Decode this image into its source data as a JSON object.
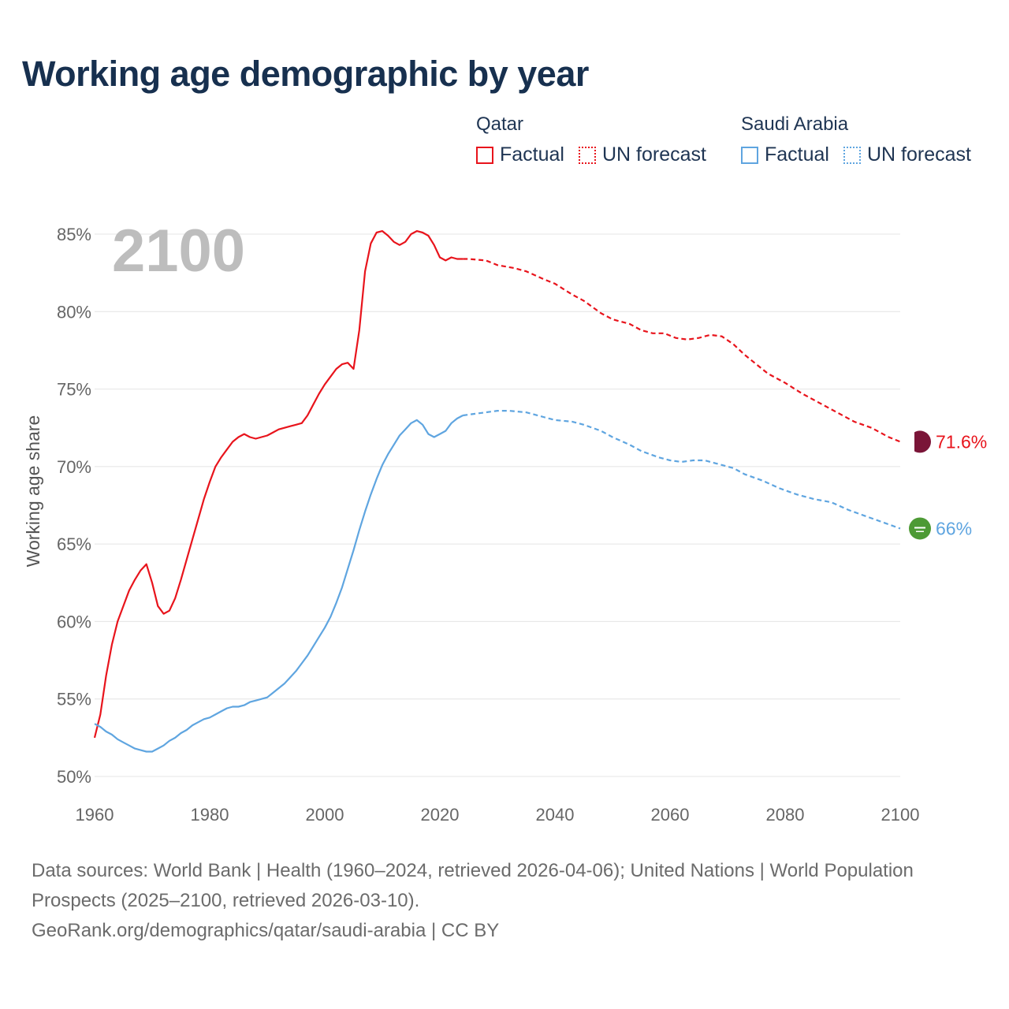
{
  "title": "Working age demographic by year",
  "current_year_label": "2100",
  "legend": {
    "groups": [
      {
        "country": "Qatar",
        "color": "#e8141c",
        "factual_label": "Factual",
        "forecast_label": "UN forecast"
      },
      {
        "country": "Saudi Arabia",
        "color": "#5fa5e0",
        "factual_label": "Factual",
        "forecast_label": "UN forecast"
      }
    ]
  },
  "source": {
    "line1": "Data sources: World Bank | Health (1960–2024, retrieved 2026-04-06); United Nations | World Population Prospects (2025–2100, retrieved 2026-03-10).",
    "line2": "GeoRank.org/demographics/qatar/saudi-arabia | CC BY"
  },
  "chart_data": {
    "type": "line",
    "title": "Working age demographic by year",
    "xlabel": "",
    "ylabel": "Working age share",
    "xlim": [
      1960,
      2100
    ],
    "ylim": [
      50,
      85
    ],
    "x_ticks": [
      1960,
      1980,
      2000,
      2020,
      2040,
      2060,
      2080,
      2100
    ],
    "y_ticks": [
      50,
      55,
      60,
      65,
      70,
      75,
      80,
      85
    ],
    "y_tick_labels": [
      "50%",
      "55%",
      "60%",
      "65%",
      "70%",
      "75%",
      "80%",
      "85%"
    ],
    "grid": true,
    "factual_end_year": 2024,
    "series": [
      {
        "name": "Qatar",
        "color": "#e8141c",
        "end_label": "71.6%",
        "flag_icon": "qatar-flag-icon",
        "flag_color": "#7a1538",
        "points": [
          [
            1960,
            52.5
          ],
          [
            1961,
            54.0
          ],
          [
            1962,
            56.5
          ],
          [
            1963,
            58.5
          ],
          [
            1964,
            60.0
          ],
          [
            1965,
            61.0
          ],
          [
            1966,
            62.0
          ],
          [
            1967,
            62.7
          ],
          [
            1968,
            63.3
          ],
          [
            1969,
            63.7
          ],
          [
            1970,
            62.5
          ],
          [
            1971,
            61.0
          ],
          [
            1972,
            60.5
          ],
          [
            1973,
            60.7
          ],
          [
            1974,
            61.5
          ],
          [
            1975,
            62.7
          ],
          [
            1976,
            64.0
          ],
          [
            1977,
            65.3
          ],
          [
            1978,
            66.6
          ],
          [
            1979,
            67.9
          ],
          [
            1980,
            69.0
          ],
          [
            1981,
            70.0
          ],
          [
            1982,
            70.6
          ],
          [
            1983,
            71.1
          ],
          [
            1984,
            71.6
          ],
          [
            1985,
            71.9
          ],
          [
            1986,
            72.1
          ],
          [
            1987,
            71.9
          ],
          [
            1988,
            71.8
          ],
          [
            1989,
            71.9
          ],
          [
            1990,
            72.0
          ],
          [
            1991,
            72.2
          ],
          [
            1992,
            72.4
          ],
          [
            1993,
            72.5
          ],
          [
            1994,
            72.6
          ],
          [
            1995,
            72.7
          ],
          [
            1996,
            72.8
          ],
          [
            1997,
            73.3
          ],
          [
            1998,
            74.0
          ],
          [
            1999,
            74.7
          ],
          [
            2000,
            75.3
          ],
          [
            2001,
            75.8
          ],
          [
            2002,
            76.3
          ],
          [
            2003,
            76.6
          ],
          [
            2004,
            76.7
          ],
          [
            2005,
            76.3
          ],
          [
            2006,
            78.8
          ],
          [
            2007,
            82.6
          ],
          [
            2008,
            84.4
          ],
          [
            2009,
            85.1
          ],
          [
            2010,
            85.2
          ],
          [
            2011,
            84.9
          ],
          [
            2012,
            84.5
          ],
          [
            2013,
            84.3
          ],
          [
            2014,
            84.5
          ],
          [
            2015,
            85.0
          ],
          [
            2016,
            85.2
          ],
          [
            2017,
            85.1
          ],
          [
            2018,
            84.9
          ],
          [
            2019,
            84.3
          ],
          [
            2020,
            83.5
          ],
          [
            2021,
            83.3
          ],
          [
            2022,
            83.5
          ],
          [
            2023,
            83.4
          ],
          [
            2024,
            83.4
          ],
          [
            2025,
            83.4
          ],
          [
            2028,
            83.3
          ],
          [
            2030,
            83.0
          ],
          [
            2033,
            82.8
          ],
          [
            2035,
            82.6
          ],
          [
            2038,
            82.1
          ],
          [
            2040,
            81.8
          ],
          [
            2043,
            81.1
          ],
          [
            2045,
            80.7
          ],
          [
            2048,
            79.9
          ],
          [
            2050,
            79.5
          ],
          [
            2053,
            79.2
          ],
          [
            2055,
            78.8
          ],
          [
            2057,
            78.6
          ],
          [
            2059,
            78.6
          ],
          [
            2061,
            78.3
          ],
          [
            2063,
            78.2
          ],
          [
            2065,
            78.3
          ],
          [
            2067,
            78.5
          ],
          [
            2069,
            78.4
          ],
          [
            2071,
            77.9
          ],
          [
            2073,
            77.2
          ],
          [
            2075,
            76.6
          ],
          [
            2077,
            76.0
          ],
          [
            2080,
            75.4
          ],
          [
            2083,
            74.7
          ],
          [
            2086,
            74.1
          ],
          [
            2089,
            73.5
          ],
          [
            2092,
            72.9
          ],
          [
            2095,
            72.5
          ],
          [
            2098,
            71.9
          ],
          [
            2100,
            71.6
          ]
        ]
      },
      {
        "name": "Saudi Arabia",
        "color": "#5fa5e0",
        "end_label": "66%",
        "flag_icon": "saudi-arabia-flag-icon",
        "flag_color": "#4d9a35",
        "points": [
          [
            1960,
            53.4
          ],
          [
            1961,
            53.2
          ],
          [
            1962,
            52.9
          ],
          [
            1963,
            52.7
          ],
          [
            1964,
            52.4
          ],
          [
            1965,
            52.2
          ],
          [
            1966,
            52.0
          ],
          [
            1967,
            51.8
          ],
          [
            1968,
            51.7
          ],
          [
            1969,
            51.6
          ],
          [
            1970,
            51.6
          ],
          [
            1971,
            51.8
          ],
          [
            1972,
            52.0
          ],
          [
            1973,
            52.3
          ],
          [
            1974,
            52.5
          ],
          [
            1975,
            52.8
          ],
          [
            1976,
            53.0
          ],
          [
            1977,
            53.3
          ],
          [
            1978,
            53.5
          ],
          [
            1979,
            53.7
          ],
          [
            1980,
            53.8
          ],
          [
            1981,
            54.0
          ],
          [
            1982,
            54.2
          ],
          [
            1983,
            54.4
          ],
          [
            1984,
            54.5
          ],
          [
            1985,
            54.5
          ],
          [
            1986,
            54.6
          ],
          [
            1987,
            54.8
          ],
          [
            1988,
            54.9
          ],
          [
            1989,
            55.0
          ],
          [
            1990,
            55.1
          ],
          [
            1991,
            55.4
          ],
          [
            1992,
            55.7
          ],
          [
            1993,
            56.0
          ],
          [
            1994,
            56.4
          ],
          [
            1995,
            56.8
          ],
          [
            1996,
            57.3
          ],
          [
            1997,
            57.8
          ],
          [
            1998,
            58.4
          ],
          [
            1999,
            59.0
          ],
          [
            2000,
            59.6
          ],
          [
            2001,
            60.3
          ],
          [
            2002,
            61.2
          ],
          [
            2003,
            62.2
          ],
          [
            2004,
            63.4
          ],
          [
            2005,
            64.6
          ],
          [
            2006,
            65.9
          ],
          [
            2007,
            67.1
          ],
          [
            2008,
            68.2
          ],
          [
            2009,
            69.2
          ],
          [
            2010,
            70.1
          ],
          [
            2011,
            70.8
          ],
          [
            2012,
            71.4
          ],
          [
            2013,
            72.0
          ],
          [
            2014,
            72.4
          ],
          [
            2015,
            72.8
          ],
          [
            2016,
            73.0
          ],
          [
            2017,
            72.7
          ],
          [
            2018,
            72.1
          ],
          [
            2019,
            71.9
          ],
          [
            2020,
            72.1
          ],
          [
            2021,
            72.3
          ],
          [
            2022,
            72.8
          ],
          [
            2023,
            73.1
          ],
          [
            2024,
            73.3
          ],
          [
            2026,
            73.4
          ],
          [
            2028,
            73.5
          ],
          [
            2030,
            73.6
          ],
          [
            2032,
            73.6
          ],
          [
            2035,
            73.5
          ],
          [
            2038,
            73.2
          ],
          [
            2040,
            73.0
          ],
          [
            2043,
            72.9
          ],
          [
            2045,
            72.7
          ],
          [
            2048,
            72.3
          ],
          [
            2050,
            71.9
          ],
          [
            2053,
            71.4
          ],
          [
            2055,
            71.0
          ],
          [
            2058,
            70.6
          ],
          [
            2060,
            70.4
          ],
          [
            2062,
            70.3
          ],
          [
            2064,
            70.4
          ],
          [
            2066,
            70.4
          ],
          [
            2068,
            70.2
          ],
          [
            2071,
            69.9
          ],
          [
            2073,
            69.5
          ],
          [
            2076,
            69.1
          ],
          [
            2079,
            68.6
          ],
          [
            2082,
            68.2
          ],
          [
            2085,
            67.9
          ],
          [
            2088,
            67.7
          ],
          [
            2091,
            67.2
          ],
          [
            2094,
            66.8
          ],
          [
            2097,
            66.4
          ],
          [
            2100,
            66.0
          ]
        ]
      }
    ]
  }
}
